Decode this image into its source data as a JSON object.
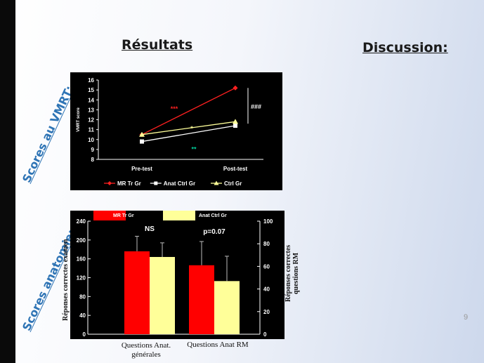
{
  "headings": {
    "results": "Résultats",
    "discussion": "Discussion:"
  },
  "section_labels": {
    "vmrt": "Scores au VMRT:",
    "anatomy": "Scores anatomie:"
  },
  "page_number": "9",
  "colors": {
    "red": "#ff0000",
    "white": "#ffffff",
    "yellow": "#ffff99",
    "panel": "#000000",
    "label_blue": "#2e74b5"
  },
  "chart_data": [
    {
      "type": "line",
      "ylabel": "VMRT score",
      "ylim": [
        8,
        16
      ],
      "yticks": [
        8,
        9,
        10,
        11,
        12,
        13,
        14,
        15,
        16
      ],
      "categories": [
        "Pre-test",
        "Post-test"
      ],
      "series": [
        {
          "name": "MR Tr Gr",
          "values": [
            10.5,
            15.2
          ],
          "color": "#ff2020",
          "marker": "diamond"
        },
        {
          "name": "Anat Ctrl Gr",
          "values": [
            9.8,
            11.4
          ],
          "color": "#ffffff",
          "marker": "square"
        },
        {
          "name": "Ctrl Gr",
          "values": [
            10.5,
            11.8
          ],
          "color": "#ffff99",
          "marker": "triangle"
        }
      ],
      "annotations": [
        {
          "text": "***",
          "color": "#ff2020"
        },
        {
          "text": "*",
          "color": "#ffff99"
        },
        {
          "text": "**",
          "color": "#00cc99"
        },
        {
          "text": "###",
          "color": "#ffffff"
        }
      ]
    },
    {
      "type": "bar",
      "ylabel_left": "Réponses correctes examen",
      "ylabel_right": [
        "Réponses correctes",
        "questions RM"
      ],
      "ylim_left": [
        0,
        240
      ],
      "yticks_left": [
        0,
        40,
        80,
        120,
        160,
        200,
        240
      ],
      "ylim_right": [
        0,
        100
      ],
      "yticks_right": [
        0,
        20,
        40,
        60,
        80,
        100
      ],
      "groups": [
        {
          "label": [
            "Questions Anat.",
            "générales"
          ],
          "values": [
            176,
            164
          ],
          "errors": [
            32,
            30
          ],
          "annotation": "NS",
          "axis": "left"
        },
        {
          "label": [
            "Questions Anat RM"
          ],
          "values": [
            61,
            47
          ],
          "errors": [
            21,
            22
          ],
          "annotation": "p=0.07",
          "axis": "right"
        }
      ],
      "series": [
        {
          "name": "MR Tr Gr",
          "color": "#ff0000"
        },
        {
          "name": "Anat Ctrl Gr",
          "color": "#ffff99"
        }
      ]
    }
  ]
}
